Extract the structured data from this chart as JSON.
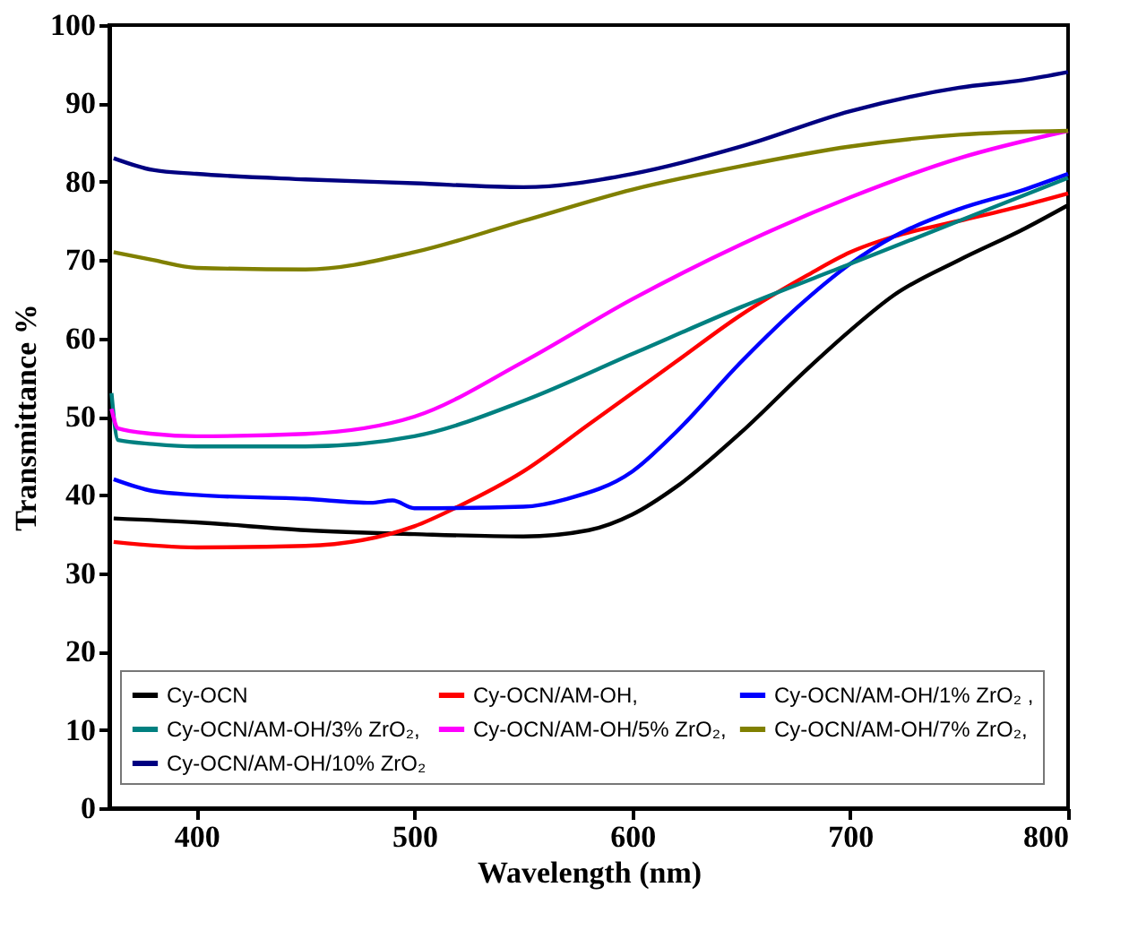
{
  "chart_data": {
    "type": "line",
    "xlabel": "Wavelength (nm)",
    "ylabel": "Transmittance %",
    "xlim": [
      360,
      800
    ],
    "xticks": [
      400,
      500,
      600,
      700,
      800
    ],
    "ylim": [
      0,
      100
    ],
    "yticks": [
      0,
      10,
      20,
      30,
      40,
      50,
      60,
      70,
      80,
      90,
      100
    ],
    "grid": false,
    "legend": "bottom",
    "marker": "none",
    "line_style": "solid",
    "series": [
      {
        "name": "Cy-OCN",
        "color": "#000000",
        "x": [
          362,
          400,
          450,
          500,
          550,
          580,
          600,
          620,
          650,
          680,
          700,
          720,
          750,
          780,
          800
        ],
        "values": [
          37,
          36.5,
          35.5,
          35,
          34.7,
          35.5,
          37.5,
          41,
          48,
          56,
          61,
          65.5,
          70,
          74,
          77
        ]
      },
      {
        "name": "Cy-OCN/AM-OH,",
        "color": "#ff0000",
        "x": [
          362,
          400,
          450,
          500,
          520,
          550,
          580,
          600,
          620,
          650,
          680,
          700,
          720,
          750,
          780,
          800
        ],
        "values": [
          34,
          33.3,
          33.5,
          36,
          38.5,
          43,
          49,
          53,
          57,
          63,
          68,
          71,
          73,
          75,
          77,
          78.5
        ]
      },
      {
        "name": "Cy-OCN/AM-OH/1% ZrO₂ ,",
        "color": "#0000ff",
        "x": [
          362,
          380,
          400,
          450,
          480,
          490,
          500,
          550,
          570,
          600,
          620,
          650,
          680,
          700,
          720,
          750,
          780,
          800
        ],
        "values": [
          42,
          40.5,
          40,
          39.5,
          39,
          39.3,
          38.3,
          38.5,
          39.5,
          43,
          48,
          57,
          65,
          69.5,
          73,
          76.5,
          79,
          81
        ]
      },
      {
        "name": "Cy-OCN/AM-OH/3% ZrO₂,",
        "color": "#008080",
        "x": [
          361,
          364,
          380,
          400,
          450,
          500,
          550,
          600,
          650,
          700,
          750,
          800
        ],
        "values": [
          53,
          47,
          46.5,
          46.2,
          46.2,
          47.5,
          52,
          58,
          64,
          69.5,
          75,
          80.5
        ]
      },
      {
        "name": "Cy-OCN/AM-OH/5% ZrO₂,",
        "color": "#ff00ff",
        "x": [
          361,
          364,
          380,
          400,
          450,
          500,
          550,
          600,
          650,
          700,
          750,
          800
        ],
        "values": [
          51,
          48.5,
          47.8,
          47.5,
          47.8,
          50,
          57,
          65,
          72,
          78,
          83,
          86.5
        ]
      },
      {
        "name": "Cy-OCN/AM-OH/7% ZrO₂,",
        "color": "#808000",
        "x": [
          362,
          380,
          400,
          450,
          500,
          550,
          600,
          650,
          700,
          750,
          800
        ],
        "values": [
          71,
          70,
          69,
          68.8,
          71,
          75,
          79,
          82,
          84.5,
          86,
          86.5
        ]
      },
      {
        "name": "Cy-OCN/AM-OH/10% ZrO₂",
        "color": "#000080",
        "x": [
          362,
          380,
          400,
          450,
          500,
          550,
          600,
          650,
          700,
          750,
          780,
          800
        ],
        "values": [
          83,
          81.5,
          81,
          80.3,
          79.8,
          79.3,
          81,
          84.5,
          89,
          92,
          93,
          94
        ]
      }
    ]
  }
}
